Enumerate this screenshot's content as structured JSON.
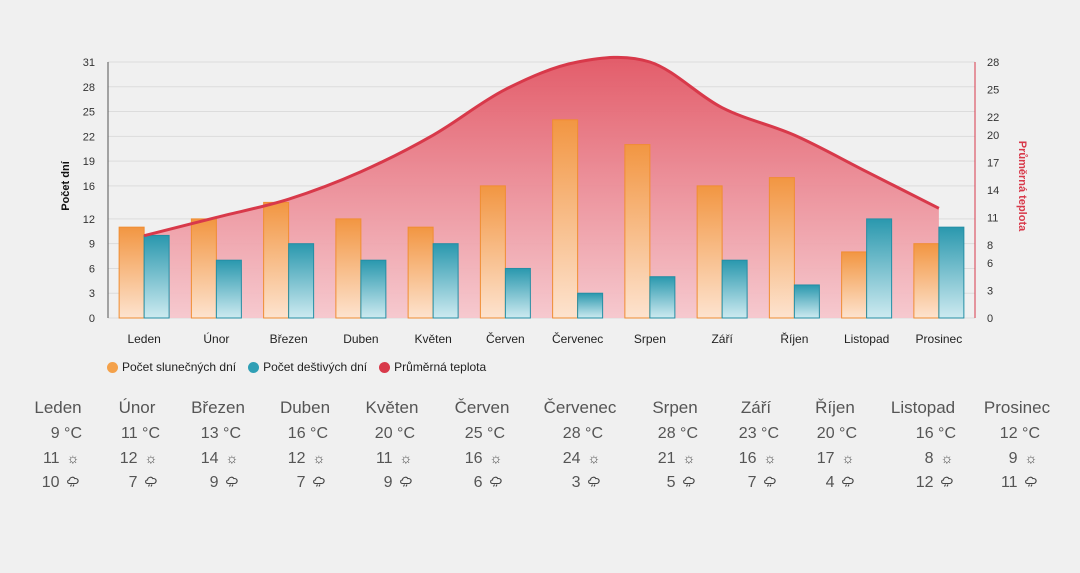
{
  "chart_data": {
    "type": "bar",
    "categories": [
      "Leden",
      "Únor",
      "Březen",
      "Duben",
      "Květen",
      "Červen",
      "Červenec",
      "Srpen",
      "Září",
      "Říjen",
      "Listopad",
      "Prosinec"
    ],
    "series": [
      {
        "name": "Počet slunečných dní",
        "type": "bar",
        "axis": "left",
        "color": "#f4a14a",
        "values": [
          11,
          12,
          14,
          12,
          11,
          16,
          24,
          21,
          16,
          17,
          8,
          9
        ]
      },
      {
        "name": "Počet deštivých dní",
        "type": "bar",
        "axis": "left",
        "color": "#2f9fb5",
        "values": [
          10,
          7,
          9,
          7,
          9,
          6,
          3,
          5,
          7,
          4,
          12,
          11
        ]
      },
      {
        "name": "Průměrná teplota",
        "type": "area",
        "axis": "right",
        "color": "#d8394a",
        "values": [
          9,
          11,
          13,
          16,
          20,
          25,
          28,
          28,
          23,
          20,
          16,
          12
        ]
      }
    ],
    "ylabel": "Počet dní",
    "ylabel_right": "Průměrná teplota",
    "ylim": [
      0,
      31
    ],
    "yticks": [
      0,
      3,
      6,
      9,
      12,
      16,
      19,
      22,
      25,
      28,
      31
    ],
    "ylim_right": [
      0,
      28
    ],
    "yticks_right": [
      0,
      3,
      6,
      8,
      11,
      14,
      17,
      20,
      22,
      25,
      28
    ],
    "legend": "bottom-left",
    "grid": true
  },
  "legend": {
    "sunny": "Počet slunečných dní",
    "rainy": "Počet deštivých dní",
    "temp": "Průměrná teplota"
  },
  "table": [
    {
      "month": "Leden",
      "temp": "9 °C",
      "sunny": "11",
      "rainy": "10"
    },
    {
      "month": "Únor",
      "temp": "11 °C",
      "sunny": "12",
      "rainy": "7"
    },
    {
      "month": "Březen",
      "temp": "13 °C",
      "sunny": "14",
      "rainy": "9"
    },
    {
      "month": "Duben",
      "temp": "16 °C",
      "sunny": "12",
      "rainy": "7"
    },
    {
      "month": "Květen",
      "temp": "20 °C",
      "sunny": "11",
      "rainy": "9"
    },
    {
      "month": "Červen",
      "temp": "25 °C",
      "sunny": "16",
      "rainy": "6"
    },
    {
      "month": "Červenec",
      "temp": "28 °C",
      "sunny": "24",
      "rainy": "3"
    },
    {
      "month": "Srpen",
      "temp": "28 °C",
      "sunny": "21",
      "rainy": "5"
    },
    {
      "month": "Září",
      "temp": "23 °C",
      "sunny": "16",
      "rainy": "7"
    },
    {
      "month": "Říjen",
      "temp": "20 °C",
      "sunny": "17",
      "rainy": "4"
    },
    {
      "month": "Listopad",
      "temp": "16 °C",
      "sunny": "8",
      "rainy": "12"
    },
    {
      "month": "Prosinec",
      "temp": "12 °C",
      "sunny": "9",
      "rainy": "11"
    }
  ],
  "icons": {
    "sunny": "sun-icon",
    "rainy": "cloud-rain-icon"
  }
}
